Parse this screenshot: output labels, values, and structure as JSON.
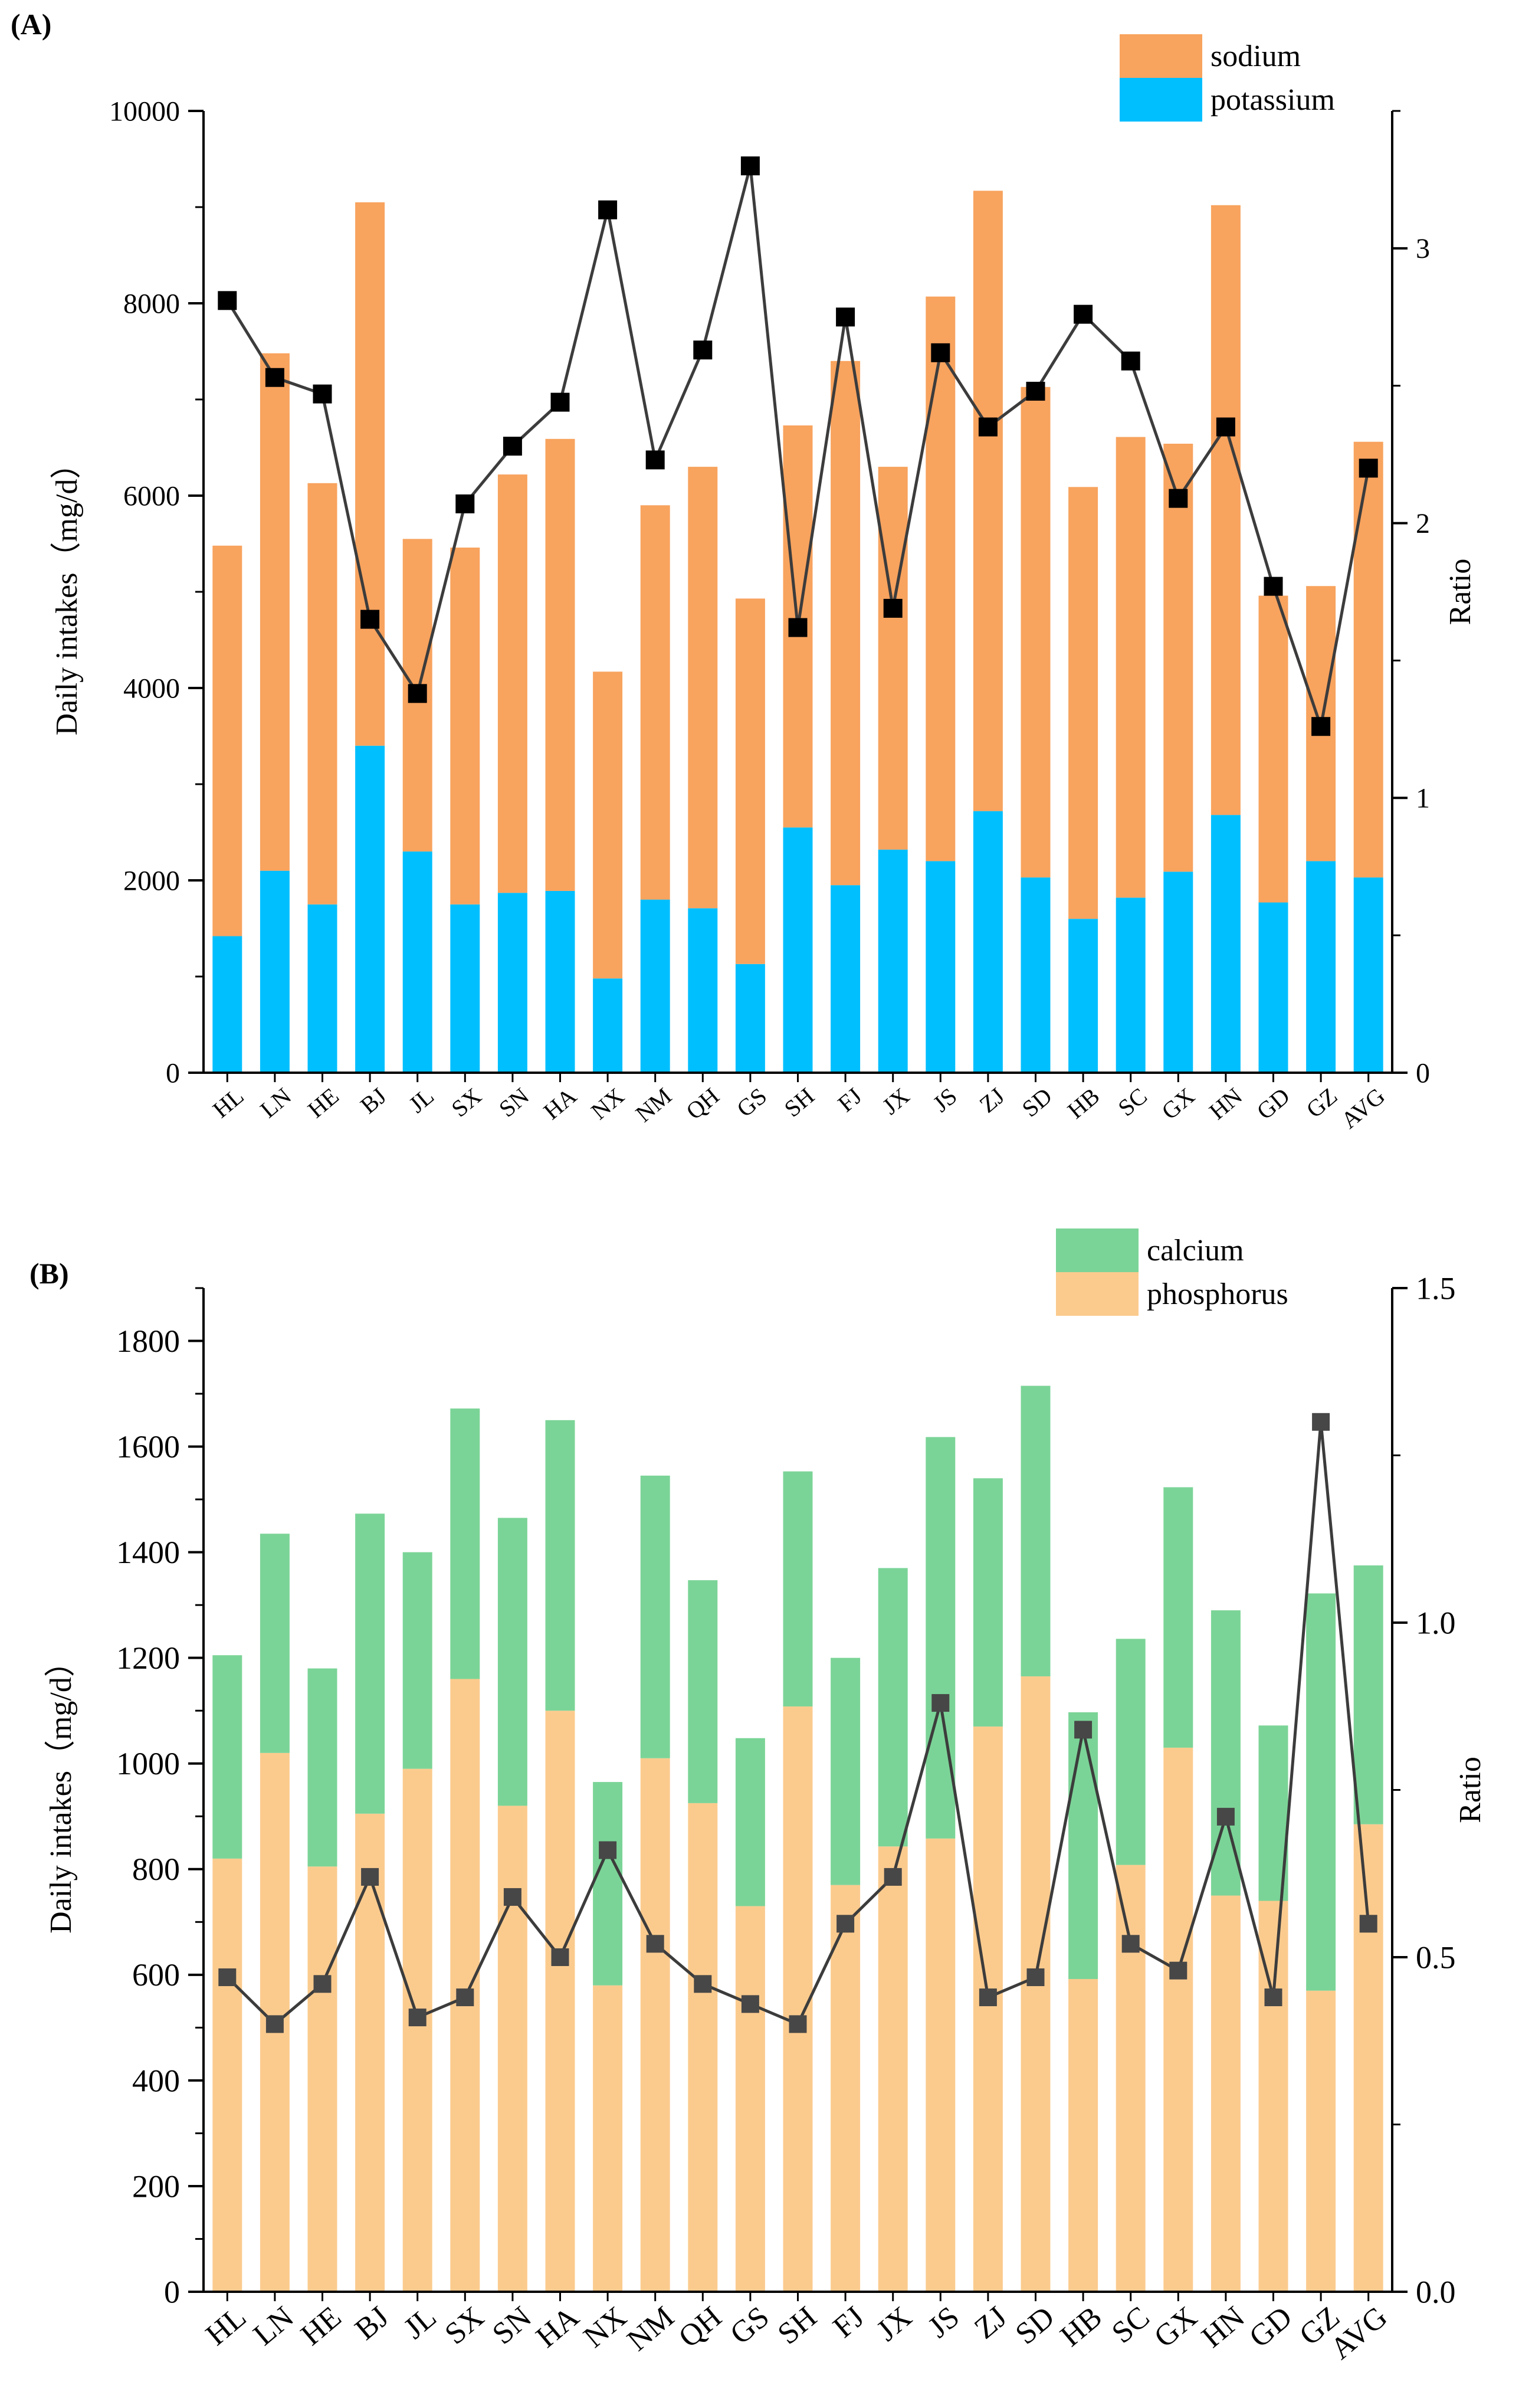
{
  "chart_data": [
    {
      "type": "bar",
      "panel_label": "(A)",
      "stacked": true,
      "categories": [
        "HL",
        "LN",
        "HE",
        "BJ",
        "JL",
        "SX",
        "SN",
        "HA",
        "NX",
        "NM",
        "QH",
        "GS",
        "SH",
        "FJ",
        "JX",
        "JS",
        "ZJ",
        "SD",
        "HB",
        "SC",
        "GX",
        "HN",
        "GD",
        "GZ",
        "AVG"
      ],
      "series": [
        {
          "name": "potassium",
          "role": "bar_bottom",
          "color": "#00BFFF",
          "values": [
            1420,
            2100,
            1750,
            3400,
            2300,
            1750,
            1870,
            1890,
            980,
            1800,
            1710,
            1130,
            2550,
            1950,
            2320,
            2200,
            2720,
            2030,
            1600,
            1820,
            2090,
            2680,
            1770,
            2200,
            2030
          ]
        },
        {
          "name": "sodium",
          "role": "bar_top",
          "color": "#F8A35E",
          "values": [
            4060,
            5380,
            4380,
            5650,
            3250,
            3710,
            4350,
            4700,
            3190,
            4100,
            4590,
            3800,
            4180,
            5450,
            3980,
            5870,
            6450,
            5100,
            4490,
            4790,
            4450,
            6340,
            3190,
            2860,
            4530
          ]
        },
        {
          "name": "ratio",
          "role": "line",
          "axis": "right",
          "color": "#3C3C3C",
          "marker": "#000000",
          "values": [
            2.81,
            2.53,
            2.47,
            1.65,
            1.38,
            2.07,
            2.28,
            2.44,
            3.14,
            2.23,
            2.63,
            3.3,
            1.62,
            2.75,
            1.69,
            2.62,
            2.35,
            2.48,
            2.76,
            2.59,
            2.09,
            2.35,
            1.77,
            1.26,
            2.2
          ]
        }
      ],
      "y_label": "Daily intakes（mg/d）",
      "y_ticks": [
        "0",
        "2000",
        "4000",
        "6000",
        "8000",
        "10000"
      ],
      "ylim": [
        0,
        10000
      ],
      "y2_label": "Ratio",
      "y2_ticks": [
        "0",
        "1",
        "2",
        "3"
      ],
      "y2lim": [
        0,
        3.5
      ],
      "legend": {
        "position": "top-right",
        "entries": [
          "sodium",
          "potassium"
        ]
      }
    },
    {
      "type": "bar",
      "panel_label": "(B)",
      "stacked": true,
      "categories": [
        "HL",
        "LN",
        "HE",
        "BJ",
        "JL",
        "SX",
        "SN",
        "HA",
        "NX",
        "NM",
        "QH",
        "GS",
        "SH",
        "FJ",
        "JX",
        "JS",
        "ZJ",
        "SD",
        "HB",
        "SC",
        "GX",
        "HN",
        "GD",
        "GZ",
        "AVG"
      ],
      "series": [
        {
          "name": "phosphorus",
          "role": "bar_bottom",
          "color": "#FBCB8E",
          "values": [
            820,
            1020,
            805,
            905,
            990,
            1160,
            920,
            1100,
            580,
            1010,
            925,
            730,
            1108,
            770,
            843,
            858,
            1070,
            1165,
            592,
            808,
            1030,
            750,
            740,
            570,
            885
          ]
        },
        {
          "name": "calcium",
          "role": "bar_top",
          "color": "#7BD497",
          "values": [
            385,
            415,
            375,
            568,
            410,
            512,
            545,
            550,
            385,
            535,
            422,
            318,
            445,
            430,
            527,
            760,
            470,
            550,
            505,
            428,
            493,
            540,
            332,
            752,
            490
          ]
        },
        {
          "name": "ratio",
          "role": "line",
          "axis": "right",
          "color": "#3C3C3C",
          "marker": "#474747",
          "values": [
            0.47,
            0.4,
            0.46,
            0.62,
            0.41,
            0.44,
            0.59,
            0.5,
            0.66,
            0.52,
            0.46,
            0.43,
            0.4,
            0.55,
            0.62,
            0.88,
            0.44,
            0.47,
            0.84,
            0.52,
            0.48,
            0.71,
            0.44,
            1.3,
            0.55
          ]
        }
      ],
      "y_label": "Daily intakes（mg/d）",
      "y_ticks": [
        "0",
        "200",
        "400",
        "600",
        "800",
        "1000",
        "1200",
        "1400",
        "1600",
        "1800"
      ],
      "ylim": [
        0,
        1900
      ],
      "y2_label": "Ratio",
      "y2_ticks": [
        "0.0",
        "0.5",
        "1.0",
        "1.5"
      ],
      "y2lim": [
        0,
        1.5
      ],
      "legend": {
        "position": "top-right",
        "entries": [
          "calcium",
          "phosphorus"
        ]
      }
    }
  ]
}
